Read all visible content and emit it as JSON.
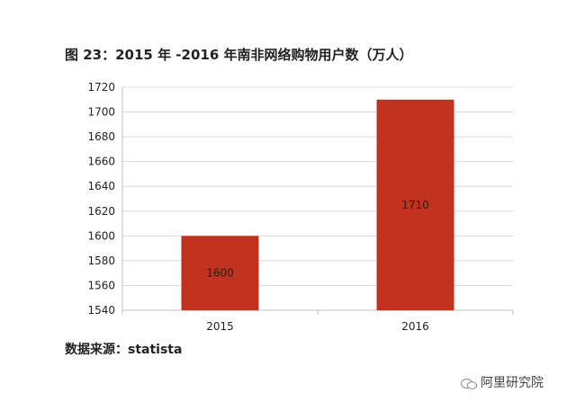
{
  "title": "图 23：2015 年 -2016 年南非网络购物用户数（万人）",
  "source": "数据来源：statista",
  "watermark": "阿里研究院",
  "colors": {
    "bar": "#c0321e",
    "grid": "#d9d9d9",
    "axis": "#bfbfbf",
    "text": "#222222"
  },
  "chart_data": {
    "type": "bar",
    "categories": [
      "2015",
      "2016"
    ],
    "values": [
      1600,
      1710
    ],
    "data_labels": [
      "1600",
      "1710"
    ],
    "ylim": [
      1540,
      1720
    ],
    "yticks": [
      1540,
      1560,
      1580,
      1600,
      1620,
      1640,
      1660,
      1680,
      1700,
      1720
    ],
    "grid": true,
    "legend": "none",
    "xlabel": "",
    "ylabel": ""
  }
}
